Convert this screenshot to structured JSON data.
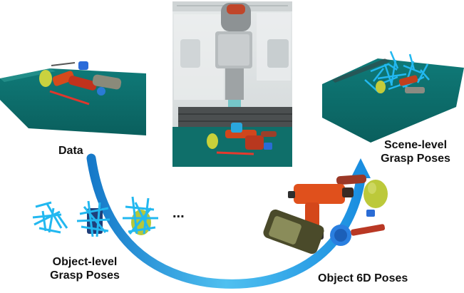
{
  "labels": {
    "data": "Data",
    "scene_level_line1": "Scene-level",
    "scene_level_line2": "Grasp Poses",
    "object_level_line1": "Object-level",
    "object_level_line2": "Grasp Poses",
    "object_6d": "Object 6D Poses",
    "ellipsis": "..."
  },
  "colors": {
    "arrow": "#1e9be0",
    "table": "#0d6b6a",
    "grasp": "#22b8f0",
    "drill": "#e0501c",
    "pear": "#b8c93a"
  },
  "icons": [
    "robot-arm",
    "drill",
    "pear",
    "grasp-gripper"
  ]
}
